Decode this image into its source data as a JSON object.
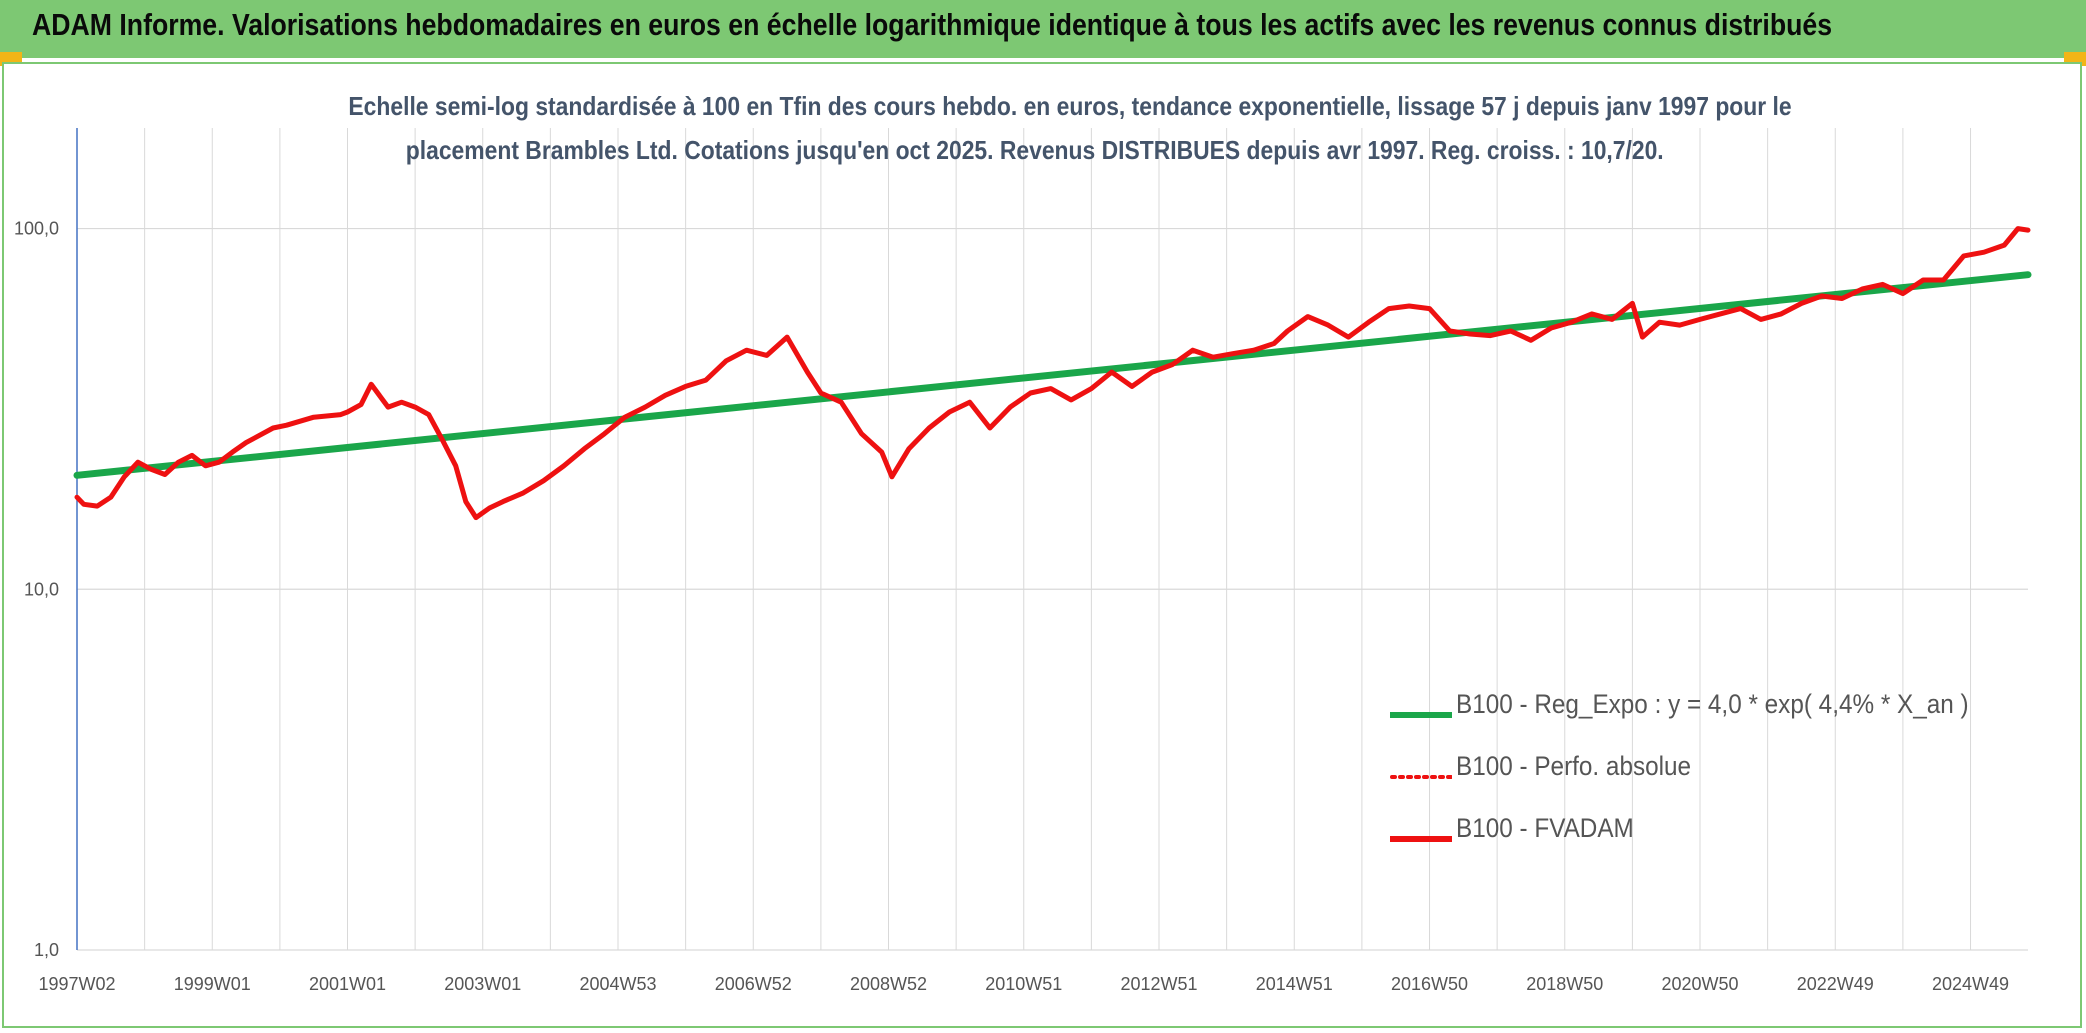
{
  "header": {
    "title": "ADAM Informe. Valorisations hebdomadaires en euros en échelle logarithmique identique à tous les actifs avec les revenus connus distribués"
  },
  "colors": {
    "banner": "#7dc873",
    "corner": "#f2b517",
    "trend": "#1aa64a",
    "fvadam": "#ee1111",
    "perfo": "#ee1111",
    "grid": "#d9d9d9",
    "title_text": "#44546a"
  },
  "chart_data": {
    "type": "line",
    "title_line1": "Echelle semi-log standardisée à 100 en Tfin des cours hebdo. en euros, tendance exponentielle, lissage 57 j depuis janv 1997 pour le",
    "title_line2": "placement Brambles Ltd. Cotations jusqu'en oct 2025. Revenus DISTRIBUES depuis avr 1997. Reg. croiss. : 10,7/20.",
    "y_scale": "log",
    "ylim": [
      1,
      190
    ],
    "y_ticks": [
      {
        "value": 1,
        "label": "1,0"
      },
      {
        "value": 10,
        "label": "10,0"
      },
      {
        "value": 100,
        "label": "100,0"
      }
    ],
    "xlim": [
      1997.0,
      2025.85
    ],
    "x_ticks": [
      {
        "value": 1997.0,
        "label": "1997W02"
      },
      {
        "value": 1999.0,
        "label": "1999W01"
      },
      {
        "value": 2001.0,
        "label": "2001W01"
      },
      {
        "value": 2003.0,
        "label": "2003W01"
      },
      {
        "value": 2005.0,
        "label": "2004W53"
      },
      {
        "value": 2007.0,
        "label": "2006W52"
      },
      {
        "value": 2009.0,
        "label": "2008W52"
      },
      {
        "value": 2011.0,
        "label": "2010W51"
      },
      {
        "value": 2013.0,
        "label": "2012W51"
      },
      {
        "value": 2015.0,
        "label": "2014W51"
      },
      {
        "value": 2017.0,
        "label": "2016W50"
      },
      {
        "value": 2019.0,
        "label": "2018W50"
      },
      {
        "value": 2021.0,
        "label": "2020W50"
      },
      {
        "value": 2023.0,
        "label": "2022W49"
      },
      {
        "value": 2025.0,
        "label": "2024W49"
      }
    ],
    "grid": true,
    "legend_position": "bottom-right",
    "series": [
      {
        "name": "B100 - Reg_Expo : y = 4,0 * exp( 4,4% *  X_an )",
        "style": "solid-thick",
        "color": "#1aa64a",
        "x": [
          1997.0,
          2025.85
        ],
        "y": [
          20.7,
          74.5
        ]
      },
      {
        "name": "B100 - Perfo. absolue",
        "style": "dotted",
        "color": "#ee1111",
        "x": [],
        "y": []
      },
      {
        "name": "B100 - FVADAM",
        "style": "solid",
        "color": "#ee1111",
        "x": [
          1997.0,
          1997.1,
          1997.3,
          1997.5,
          1997.7,
          1997.9,
          1998.1,
          1998.3,
          1998.5,
          1998.7,
          1998.9,
          1999.1,
          1999.3,
          1999.5,
          1999.9,
          2000.1,
          2000.5,
          2000.9,
          2001.0,
          2001.2,
          2001.35,
          2001.6,
          2001.8,
          2002.0,
          2002.2,
          2002.4,
          2002.6,
          2002.75,
          2002.9,
          2003.1,
          2003.3,
          2003.6,
          2003.9,
          2004.2,
          2004.5,
          2004.8,
          2005.1,
          2005.4,
          2005.7,
          2006.0,
          2006.3,
          2006.6,
          2006.9,
          2007.2,
          2007.5,
          2007.8,
          2008.0,
          2008.3,
          2008.6,
          2008.9,
          2009.05,
          2009.3,
          2009.6,
          2009.9,
          2010.2,
          2010.5,
          2010.8,
          2011.1,
          2011.4,
          2011.7,
          2012.0,
          2012.3,
          2012.6,
          2012.9,
          2013.2,
          2013.5,
          2013.8,
          2014.1,
          2014.4,
          2014.7,
          2014.9,
          2015.2,
          2015.5,
          2015.8,
          2016.1,
          2016.4,
          2016.7,
          2017.0,
          2017.3,
          2017.6,
          2017.9,
          2018.2,
          2018.5,
          2018.8,
          2019.1,
          2019.4,
          2019.7,
          2020.0,
          2020.15,
          2020.4,
          2020.7,
          2021.0,
          2021.3,
          2021.6,
          2021.9,
          2022.2,
          2022.5,
          2022.8,
          2023.1,
          2023.4,
          2023.7,
          2024.0,
          2024.3,
          2024.6,
          2024.9,
          2025.2,
          2025.5,
          2025.7,
          2025.85
        ],
        "y": [
          18.0,
          17.2,
          17.0,
          18.0,
          20.5,
          22.5,
          21.5,
          20.8,
          22.5,
          23.5,
          22.0,
          22.5,
          24.0,
          25.5,
          28.0,
          28.5,
          30.0,
          30.5,
          31.0,
          32.5,
          37.0,
          32.0,
          33.0,
          32.0,
          30.5,
          26.0,
          22.0,
          17.5,
          15.8,
          16.8,
          17.5,
          18.5,
          20.0,
          22.0,
          24.5,
          27.0,
          30.0,
          32.0,
          34.5,
          36.5,
          38.0,
          43.0,
          46.0,
          44.5,
          50.0,
          40.0,
          35.0,
          33.0,
          27.0,
          24.0,
          20.5,
          24.5,
          28.0,
          31.0,
          33.0,
          28.0,
          32.0,
          35.0,
          36.0,
          33.5,
          36.0,
          40.0,
          36.5,
          40.0,
          42.0,
          46.0,
          44.0,
          45.0,
          46.0,
          48.0,
          52.0,
          57.0,
          54.0,
          50.0,
          55.0,
          60.0,
          61.0,
          60.0,
          52.0,
          51.0,
          50.5,
          52.0,
          49.0,
          53.0,
          55.0,
          58.0,
          56.0,
          62.0,
          50.0,
          55.0,
          54.0,
          56.0,
          58.0,
          60.0,
          56.0,
          58.0,
          62.0,
          65.0,
          64.0,
          68.0,
          70.0,
          66.0,
          72.0,
          72.0,
          84.0,
          86.0,
          90.0,
          100.0,
          99.0
        ]
      }
    ]
  }
}
